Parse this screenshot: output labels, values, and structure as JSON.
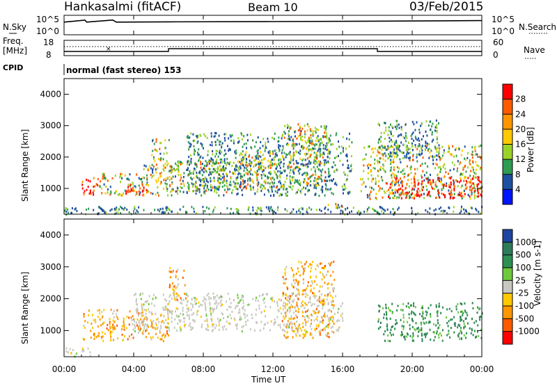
{
  "header": {
    "station": "Hankasalmi (fitACF)",
    "beam": "Beam 10",
    "date": "03/Feb/2015"
  },
  "noise_panel": {
    "left_label": "N.Sky",
    "right_label": "N.Search",
    "left_ticks": [
      "10^5",
      "10^0"
    ],
    "right_ticks": [
      "10^5",
      "10^0"
    ]
  },
  "freq_panel": {
    "left_label_1": "Freq.",
    "left_label_2": "[MHz]",
    "right_label": "Nave",
    "left_ticks": [
      "18",
      "8"
    ],
    "right_ticks": [
      "60",
      "0"
    ]
  },
  "cpid": {
    "label": "CPID",
    "text": "normal (fast stereo) 153"
  },
  "power_panel": {
    "ylabel": "Slant Range [km]",
    "cbar_label": "Power [dB]",
    "cbar_ticks": [
      "28",
      "24",
      "20",
      "16",
      "12",
      "8",
      "4"
    ],
    "cbar_colors": [
      "#ff0000",
      "#ff5a00",
      "#ff9600",
      "#ffc800",
      "#9bd228",
      "#2e9b52",
      "#1e50a0",
      "#0014ff"
    ]
  },
  "velocity_panel": {
    "ylabel": "Slant Range [km]",
    "cbar_label": "Velocity [m s-1]",
    "cbar_ticks": [
      "1000",
      "500",
      "100",
      "25",
      "-25",
      "-100",
      "-500",
      "-1000"
    ],
    "cbar_colors": [
      "#1e46a0",
      "#2e7b5a",
      "#2e8f52",
      "#6ec83c",
      "#c8c8c0",
      "#ffc800",
      "#ff9600",
      "#ff5a00",
      "#ff0000"
    ]
  },
  "xaxis": {
    "label": "Time UT",
    "ticks": [
      "00:00",
      "04:00",
      "08:00",
      "12:00",
      "16:00",
      "20:00",
      "00:00"
    ]
  },
  "chart_data": [
    {
      "type": "line",
      "title": "",
      "xlabel": "",
      "ylabel": "N.Sky",
      "x_range_hours": [
        0,
        24
      ],
      "yscale": "log",
      "series": [
        {
          "name": "N.Sky",
          "x": [
            0,
            1.2,
            1.3,
            2.8,
            3.0,
            6,
            12,
            18,
            24
          ],
          "y": [
            2000,
            8000,
            2000,
            9000,
            2000,
            2500,
            3000,
            4000,
            6000
          ]
        }
      ]
    },
    {
      "type": "line",
      "title": "",
      "ylabel": "Freq. [MHz]",
      "x_range_hours": [
        0,
        24
      ],
      "ylim": [
        8,
        18
      ],
      "series": [
        {
          "name": "Freq.",
          "x": [
            0,
            6,
            6,
            18,
            18,
            24
          ],
          "y": [
            10,
            10,
            12,
            12,
            10,
            10
          ]
        }
      ]
    },
    {
      "type": "heatmap",
      "title": "",
      "xlabel": "Time UT",
      "ylabel": "Slant Range [km]",
      "ylim": [
        180,
        4500
      ],
      "x_range_hours": [
        0,
        24
      ],
      "colorbar": "Power [dB]",
      "colorbar_range": [
        0,
        30
      ],
      "cells": [
        {
          "t": [
            0,
            24
          ],
          "r": [
            200,
            450
          ],
          "level": "low"
        },
        {
          "t": [
            1.0,
            2.0
          ],
          "r": [
            800,
            1400
          ],
          "level": "high"
        },
        {
          "t": [
            2.0,
            4.5
          ],
          "r": [
            800,
            1500
          ],
          "level": "medium"
        },
        {
          "t": [
            3.5,
            4.8
          ],
          "r": [
            800,
            1200
          ],
          "level": "high"
        },
        {
          "t": [
            4.5,
            6.5
          ],
          "r": [
            800,
            1800
          ],
          "level": "medium"
        },
        {
          "t": [
            5.0,
            6.0
          ],
          "r": [
            1800,
            2600
          ],
          "level": "medium"
        },
        {
          "t": [
            6.0,
            10.0
          ],
          "r": [
            900,
            1900
          ],
          "level": "medium"
        },
        {
          "t": [
            7.0,
            16.5
          ],
          "r": [
            800,
            2800
          ],
          "level": "low"
        },
        {
          "t": [
            10.0,
            15.0
          ],
          "r": [
            1000,
            2200
          ],
          "level": "medium"
        },
        {
          "t": [
            12.5,
            15.2
          ],
          "r": [
            2200,
            3100
          ],
          "level": "medium"
        },
        {
          "t": [
            15.0,
            16.0
          ],
          "r": [
            400,
            600
          ],
          "level": "medium"
        },
        {
          "t": [
            17.0,
            24
          ],
          "r": [
            700,
            2400
          ],
          "level": "medium"
        },
        {
          "t": [
            18.5,
            24
          ],
          "r": [
            700,
            1400
          ],
          "level": "high"
        },
        {
          "t": [
            18.0,
            21.5
          ],
          "r": [
            2000,
            3200
          ],
          "level": "low"
        }
      ]
    },
    {
      "type": "heatmap",
      "title": "",
      "xlabel": "Time UT",
      "ylabel": "Slant Range [km]",
      "ylim": [
        180,
        4500
      ],
      "x_range_hours": [
        0,
        24
      ],
      "colorbar": "Velocity [m s-1]",
      "colorbar_range": [
        -1000,
        1000
      ],
      "cells": [
        {
          "t": [
            0,
            1.5
          ],
          "r": [
            200,
            500
          ],
          "level": "slow"
        },
        {
          "t": [
            1.0,
            6.0
          ],
          "r": [
            700,
            1700
          ],
          "level": "toward"
        },
        {
          "t": [
            4.0,
            16.0
          ],
          "r": [
            1000,
            2200
          ],
          "level": "slow"
        },
        {
          "t": [
            6.0,
            7.0
          ],
          "r": [
            2000,
            3000
          ],
          "level": "toward"
        },
        {
          "t": [
            12.5,
            15.5
          ],
          "r": [
            800,
            3200
          ],
          "level": "toward"
        },
        {
          "t": [
            18.0,
            24
          ],
          "r": [
            700,
            1900
          ],
          "level": "away"
        }
      ]
    }
  ]
}
